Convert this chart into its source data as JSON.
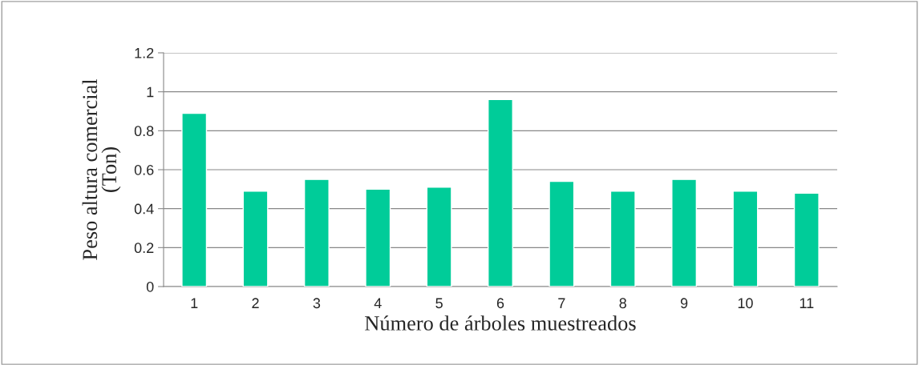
{
  "chart_data": {
    "type": "bar",
    "categories": [
      "1",
      "2",
      "3",
      "4",
      "5",
      "6",
      "7",
      "8",
      "9",
      "10",
      "11"
    ],
    "values": [
      0.89,
      0.49,
      0.55,
      0.5,
      0.51,
      0.96,
      0.54,
      0.49,
      0.55,
      0.49,
      0.48
    ],
    "color": "#00cc99",
    "xlabel": "Número de árboles muestreados",
    "ylabel": "Peso altura comercial\n(Ton)",
    "ylim": [
      0,
      1.2
    ],
    "yticks": [
      {
        "value": 0,
        "label": "0"
      },
      {
        "value": 0.2,
        "label": "0.2"
      },
      {
        "value": 0.4,
        "label": "0.4"
      },
      {
        "value": 0.6,
        "label": "0.6"
      },
      {
        "value": 0.8,
        "label": "0.8"
      },
      {
        "value": 1,
        "label": "1"
      },
      {
        "value": 1.2,
        "label": "1.2"
      }
    ],
    "grid": "y",
    "legend": false
  }
}
